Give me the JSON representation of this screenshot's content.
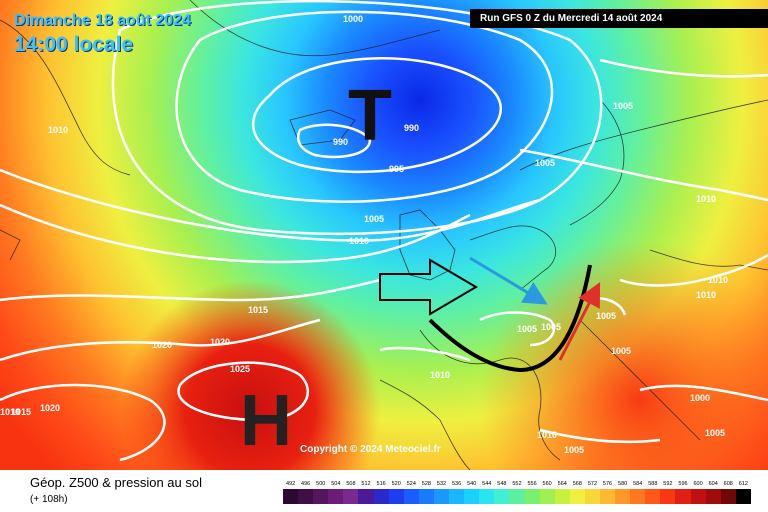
{
  "header": {
    "date": "Dimanche 18 août 2024",
    "time": "14:00 locale",
    "run": "Run GFS 0 Z du Mercredi 14 août 2024"
  },
  "copyright": "Copyright © 2024 Meteociel.fr",
  "footer": {
    "title": "Géop. Z500 & pression au sol",
    "subtitle": "(+ 108h)"
  },
  "pressure_systems": [
    {
      "symbol": "T",
      "type": "low",
      "color": "#111111"
    },
    {
      "symbol": "H",
      "type": "high",
      "color": "#222222"
    }
  ],
  "isobar_labels": [
    "1000",
    "1010",
    "990",
    "990",
    "995",
    "1005",
    "1010",
    "1005",
    "1005",
    "1010",
    "1015",
    "1020",
    "1020",
    "1025",
    "1020",
    "1010",
    "1015",
    "1010",
    "1005",
    "1005",
    "1005",
    "1005",
    "1010",
    "1010",
    "1005",
    "1000",
    "1005",
    "1010"
  ],
  "scale": {
    "labels": [
      "492",
      "496",
      "500",
      "504",
      "508",
      "512",
      "516",
      "520",
      "524",
      "528",
      "532",
      "536",
      "540",
      "544",
      "548",
      "552",
      "556",
      "560",
      "564",
      "568",
      "572",
      "576",
      "580",
      "584",
      "588",
      "592",
      "596",
      "600",
      "604",
      "608",
      "612"
    ],
    "colors": [
      "#2a0a2e",
      "#3d0f45",
      "#55145e",
      "#6d1a78",
      "#7a2a8e",
      "#4a1a9a",
      "#2a2acc",
      "#1a3ef0",
      "#1a5cff",
      "#1a7aff",
      "#1a98ff",
      "#1ab6ff",
      "#1ad0ff",
      "#2ae4f0",
      "#40f0d0",
      "#5af0a0",
      "#7af070",
      "#a0f050",
      "#c8f040",
      "#f0f040",
      "#f8d838",
      "#ffb830",
      "#ff9828",
      "#ff7820",
      "#ff5818",
      "#f83810",
      "#e02010",
      "#c01010",
      "#a00c0c",
      "#700808",
      "#000000"
    ]
  },
  "colors": {
    "cold": "#1a6cff",
    "warm": "#ff3b1a",
    "arrow_blue": "#2a9ae0",
    "arrow_red": "#e0302a"
  }
}
